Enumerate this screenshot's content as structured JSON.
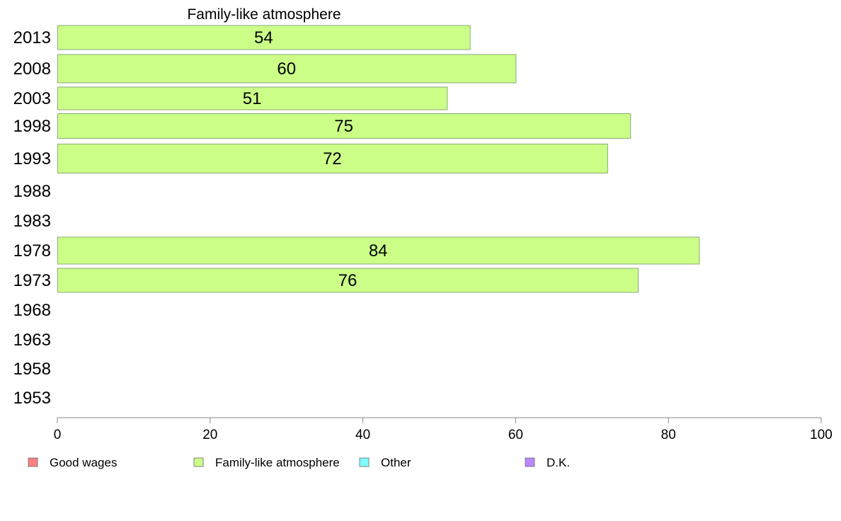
{
  "chart_data": {
    "type": "bar",
    "orientation": "horizontal",
    "title": "Family-like atmosphere",
    "categories": [
      "2013",
      "2008",
      "2003",
      "1998",
      "1993",
      "1988",
      "1983",
      "1978",
      "1973",
      "1968",
      "1963",
      "1958",
      "1953"
    ],
    "series": [
      {
        "name": "Family-like atmosphere",
        "values": [
          54,
          60,
          51,
          75,
          72,
          null,
          null,
          84,
          76,
          null,
          null,
          null,
          null
        ],
        "labels": [
          "54",
          "60",
          "51",
          "75",
          "72",
          "",
          "",
          "84",
          "76",
          "",
          "",
          "",
          ""
        ]
      }
    ],
    "xlim": [
      0,
      100
    ],
    "xticks": [
      "0",
      "20",
      "40",
      "60",
      "80",
      "100"
    ],
    "grid": false,
    "legend_position": "bottom",
    "legend": [
      {
        "label": "Good wages",
        "color": "#ff8080"
      },
      {
        "label": "Family-like atmosphere",
        "color": "#ccff88"
      },
      {
        "label": "Other",
        "color": "#80ffff"
      },
      {
        "label": "D.K.",
        "color": "#bb88ff"
      }
    ],
    "colors": {
      "bar_fill": "#ccff88",
      "bar_stroke": "#88aa77",
      "axis": "#888888"
    }
  }
}
